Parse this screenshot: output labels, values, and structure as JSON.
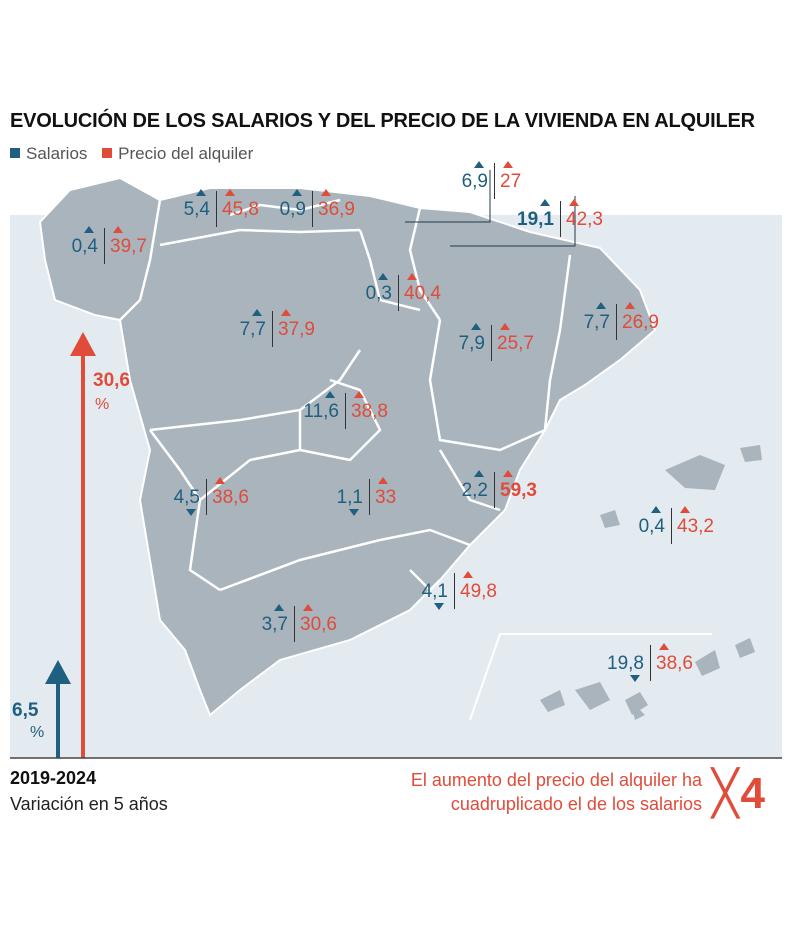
{
  "title": "EVOLUCIÓN DE LOS SALARIOS Y DEL PRECIO DE LA VIVIENDA EN ALQUILER",
  "legend": {
    "salaries": "Salarios",
    "rent": "Precio del alquiler"
  },
  "colors": {
    "salaries": "#1f5f7f",
    "rent": "#e04b3a",
    "land": "#a9b4bc",
    "sea": "#e3eaf0",
    "border": "#ffffff"
  },
  "regions": [
    {
      "name": "Galicia",
      "salary": "0,4",
      "salary_dir": "up",
      "rent": "39,7"
    },
    {
      "name": "Asturias",
      "salary": "5,4",
      "salary_dir": "up",
      "rent": "45,8"
    },
    {
      "name": "Cantabria",
      "salary": "0,9",
      "salary_dir": "up",
      "rent": "36,9"
    },
    {
      "name": "País Vasco",
      "salary": "6,9",
      "salary_dir": "up",
      "rent": "27"
    },
    {
      "name": "Navarra",
      "salary": "19,1",
      "salary_dir": "up",
      "rent": "42,3",
      "salary_bold": true
    },
    {
      "name": "La Rioja",
      "salary": "0,3",
      "salary_dir": "up",
      "rent": "40,4"
    },
    {
      "name": "Cataluña",
      "salary": "7,7",
      "salary_dir": "up",
      "rent": "26,9"
    },
    {
      "name": "Castilla y León",
      "salary": "7,7",
      "salary_dir": "up",
      "rent": "37,9"
    },
    {
      "name": "Aragón",
      "salary": "7,9",
      "salary_dir": "up",
      "rent": "25,7"
    },
    {
      "name": "Madrid",
      "salary": "11,6",
      "salary_dir": "up",
      "rent": "38,8"
    },
    {
      "name": "Extremadura",
      "salary": "4,5",
      "salary_dir": "down",
      "rent": "38,6"
    },
    {
      "name": "Castilla-La Mancha",
      "salary": "1,1",
      "salary_dir": "down",
      "rent": "33"
    },
    {
      "name": "Comunidad Valenciana",
      "salary": "2,2",
      "salary_dir": "up",
      "rent": "59,3",
      "rent_bold": true
    },
    {
      "name": "Baleares",
      "salary": "0,4",
      "salary_dir": "up",
      "rent": "43,2"
    },
    {
      "name": "Murcia",
      "salary": "4,1",
      "salary_dir": "down",
      "rent": "49,8"
    },
    {
      "name": "Andalucía",
      "salary": "3,7",
      "salary_dir": "up",
      "rent": "30,6"
    },
    {
      "name": "Canarias",
      "salary": "19,8",
      "salary_dir": "down",
      "rent": "38,6"
    }
  ],
  "national": {
    "rent_value": "30,6",
    "rent_unit": "%",
    "salary_value": "6,5",
    "salary_unit": "%"
  },
  "period": "2019-2024",
  "period_sub": "Variación en 5 años",
  "note_line1": "El aumento del precio del alquiler ha",
  "note_line2": "cuadruplicado el de los salarios",
  "multiplier": "4"
}
